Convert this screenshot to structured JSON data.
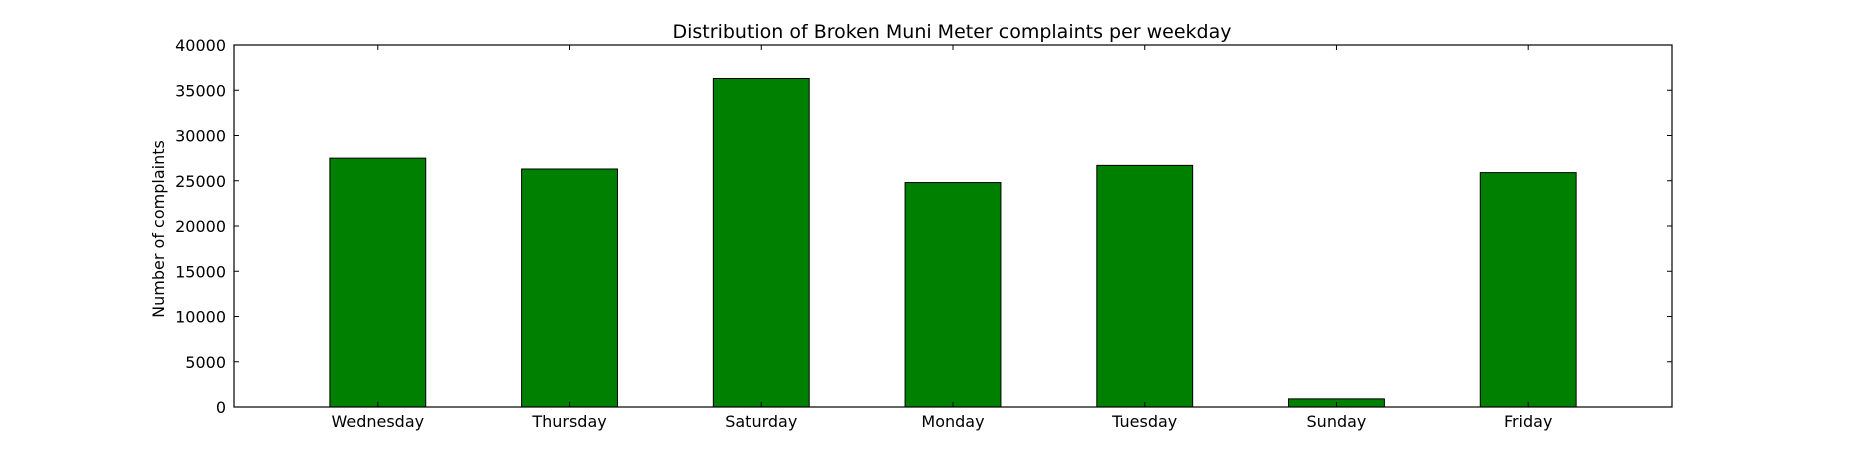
{
  "chart_data": {
    "type": "bar",
    "title": "Distribution of  Broken Muni Meter complaints per weekday",
    "xlabel": "",
    "ylabel": "Number of complaints",
    "categories": [
      "Wednesday",
      "Thursday",
      "Saturday",
      "Monday",
      "Tuesday",
      "Sunday",
      "Friday"
    ],
    "values": [
      27500,
      26300,
      36300,
      24800,
      26700,
      900,
      25900
    ],
    "ylim": [
      0,
      40000
    ],
    "yticks": [
      0,
      5000,
      10000,
      15000,
      20000,
      25000,
      30000,
      35000,
      40000
    ],
    "bar_color": "#008000",
    "edge_color": "#000000",
    "grid": false,
    "legend": "none"
  }
}
